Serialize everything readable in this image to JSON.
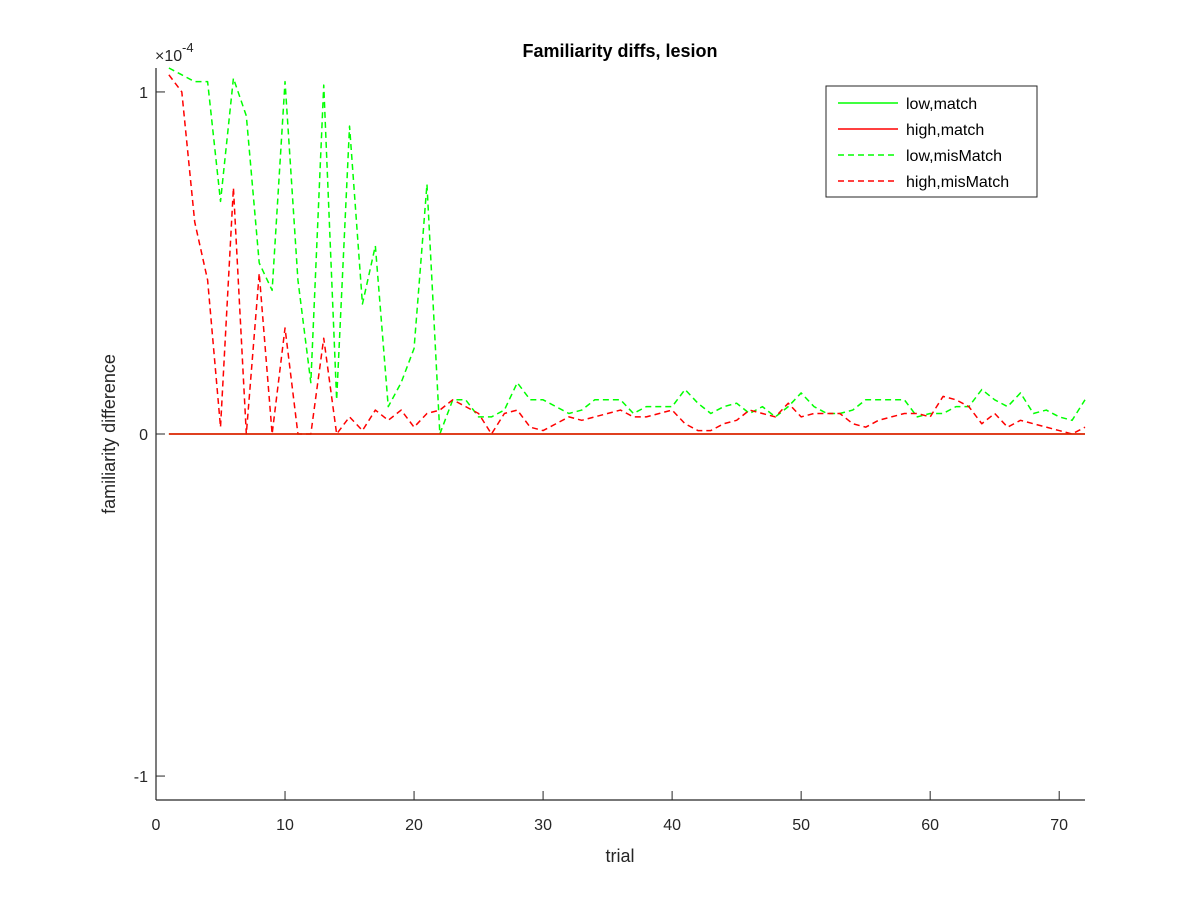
{
  "chart_data": {
    "type": "line",
    "title": "Familiarity diffs, lesion",
    "xlabel": "trial",
    "ylabel": "familiarity difference",
    "exponent_label": "×10^-4",
    "exponent_base": "×10",
    "exponent_power": "-4",
    "xlim": [
      0,
      72
    ],
    "ylim": [
      -1.07,
      1.07
    ],
    "xticks": [
      0,
      10,
      20,
      30,
      40,
      50,
      60,
      70
    ],
    "yticks": [
      -1,
      0,
      1
    ],
    "grid": false,
    "legend_position": "top-right",
    "x": [
      1,
      2,
      3,
      4,
      5,
      6,
      7,
      8,
      9,
      10,
      11,
      12,
      13,
      14,
      15,
      16,
      17,
      18,
      19,
      20,
      21,
      22,
      23,
      24,
      25,
      26,
      27,
      28,
      29,
      30,
      31,
      32,
      33,
      34,
      35,
      36,
      37,
      38,
      39,
      40,
      41,
      42,
      43,
      44,
      45,
      46,
      47,
      48,
      49,
      50,
      51,
      52,
      53,
      54,
      55,
      56,
      57,
      58,
      59,
      60,
      61,
      62,
      63,
      64,
      65,
      66,
      67,
      68,
      69,
      70,
      71,
      72
    ],
    "series": [
      {
        "name": "low,match",
        "color": "#00ff00",
        "dash": "solid",
        "values": [
          0,
          0,
          0,
          0,
          0,
          0,
          0,
          0,
          0,
          0,
          0,
          0,
          0,
          0,
          0,
          0,
          0,
          0,
          0,
          0,
          0,
          0,
          0,
          0,
          0,
          0,
          0,
          0,
          0,
          0,
          0,
          0,
          0,
          0,
          0,
          0,
          0,
          0,
          0,
          0,
          0,
          0,
          0,
          0,
          0,
          0,
          0,
          0,
          0,
          0,
          0,
          0,
          0,
          0,
          0,
          0,
          0,
          0,
          0,
          0,
          0,
          0,
          0,
          0,
          0,
          0,
          0,
          0,
          0,
          0,
          0,
          0
        ]
      },
      {
        "name": "high,match",
        "color": "#ff0000",
        "dash": "solid",
        "values": [
          0,
          0,
          0,
          0,
          0,
          0,
          0,
          0,
          0,
          0,
          0,
          0,
          0,
          0,
          0,
          0,
          0,
          0,
          0,
          0,
          0,
          0,
          0,
          0,
          0,
          0,
          0,
          0,
          0,
          0,
          0,
          0,
          0,
          0,
          0,
          0,
          0,
          0,
          0,
          0,
          0,
          0,
          0,
          0,
          0,
          0,
          0,
          0,
          0,
          0,
          0,
          0,
          0,
          0,
          0,
          0,
          0,
          0,
          0,
          0,
          0,
          0,
          0,
          0,
          0,
          0,
          0,
          0,
          0,
          0,
          0,
          0
        ]
      },
      {
        "name": "low,misMatch",
        "color": "#00ff00",
        "dash": "dashed",
        "values": [
          1.07,
          1.05,
          1.03,
          1.03,
          0.68,
          1.04,
          0.93,
          0.5,
          0.42,
          1.03,
          0.45,
          0.15,
          1.02,
          0.1,
          0.9,
          0.38,
          0.55,
          0.08,
          0.15,
          0.25,
          0.73,
          0,
          0.1,
          0.1,
          0.05,
          0.05,
          0.07,
          0.15,
          0.1,
          0.1,
          0.08,
          0.06,
          0.07,
          0.1,
          0.1,
          0.1,
          0.06,
          0.08,
          0.08,
          0.08,
          0.13,
          0.09,
          0.06,
          0.08,
          0.09,
          0.06,
          0.08,
          0.05,
          0.08,
          0.12,
          0.08,
          0.06,
          0.06,
          0.07,
          0.1,
          0.1,
          0.1,
          0.1,
          0.05,
          0.06,
          0.06,
          0.08,
          0.08,
          0.13,
          0.1,
          0.08,
          0.12,
          0.06,
          0.07,
          0.05,
          0.04,
          0.1
        ]
      },
      {
        "name": "high,misMatch",
        "color": "#ff0000",
        "dash": "dashed",
        "values": [
          1.05,
          1.0,
          0.62,
          0.45,
          0.02,
          0.72,
          0,
          0.47,
          0,
          0.31,
          0,
          0,
          0.28,
          0,
          0.05,
          0.01,
          0.07,
          0.04,
          0.07,
          0.02,
          0.06,
          0.07,
          0.1,
          0.08,
          0.06,
          0,
          0.06,
          0.07,
          0.02,
          0.01,
          0.03,
          0.05,
          0.04,
          0.05,
          0.06,
          0.07,
          0.05,
          0.05,
          0.06,
          0.07,
          0.03,
          0.01,
          0.01,
          0.03,
          0.04,
          0.07,
          0.06,
          0.05,
          0.09,
          0.05,
          0.06,
          0.06,
          0.06,
          0.03,
          0.02,
          0.04,
          0.05,
          0.06,
          0.06,
          0.05,
          0.11,
          0.1,
          0.08,
          0.03,
          0.06,
          0.02,
          0.04,
          0.03,
          0.02,
          0.01,
          0,
          0.02
        ]
      }
    ]
  }
}
